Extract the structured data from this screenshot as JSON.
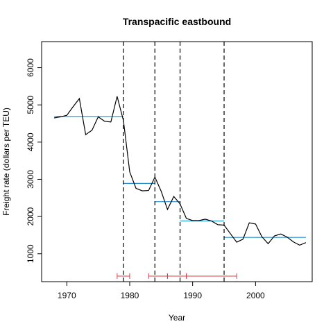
{
  "chart_data": {
    "type": "line",
    "title": "Transpacific eastbound",
    "xlabel": "Year",
    "ylabel": "Freight rate (dollars per TEU)",
    "xlim": [
      1966,
      2009
    ],
    "ylim": [
      250,
      6700
    ],
    "x_ticks": [
      1970,
      1980,
      1990,
      2000
    ],
    "y_ticks": [
      1000,
      2000,
      3000,
      4000,
      5000,
      6000
    ],
    "grid": false,
    "colors": {
      "series": "#000000",
      "fitted": "#1f8fcf",
      "breaks": "#000000",
      "ci": "#d0404a"
    },
    "series": [
      {
        "x": [
          1968,
          1969,
          1970,
          1971,
          1972,
          1973,
          1974,
          1975,
          1976,
          1977,
          1978,
          1979,
          1980,
          1981,
          1982,
          1983,
          1984,
          1985,
          1986,
          1987,
          1988,
          1989,
          1990,
          1991,
          1992,
          1993,
          1994,
          1995,
          1996,
          1997,
          1998,
          1999,
          2000,
          2001,
          2002,
          2003,
          2004,
          2005,
          2006,
          2007,
          2008
        ],
        "y": [
          4650,
          4680,
          4720,
          4950,
          5170,
          4200,
          4320,
          4680,
          4560,
          4540,
          5230,
          4580,
          3200,
          2760,
          2690,
          2700,
          3060,
          2680,
          2190,
          2540,
          2340,
          1950,
          1890,
          1890,
          1930,
          1880,
          1780,
          1770,
          1540,
          1310,
          1390,
          1830,
          1800,
          1460,
          1270,
          1480,
          1530,
          1450,
          1320,
          1230,
          1300
        ]
      }
    ],
    "fitted_segments": [
      {
        "x": [
          1968,
          1979
        ],
        "y": 4690
      },
      {
        "x": [
          1979,
          1984
        ],
        "y": 2890
      },
      {
        "x": [
          1984,
          1988
        ],
        "y": 2400
      },
      {
        "x": [
          1988,
          1995
        ],
        "y": 1880
      },
      {
        "x": [
          1995,
          2008
        ],
        "y": 1440
      }
    ],
    "breakpoints": [
      1979,
      1984,
      1988,
      1995
    ],
    "confidence_intervals": [
      {
        "lo": 1978,
        "hi": 1980
      },
      {
        "lo": 1983,
        "hi": 1986
      },
      {
        "lo": 1986,
        "hi": 1989
      },
      {
        "lo": 1989,
        "hi": 1997
      }
    ]
  }
}
